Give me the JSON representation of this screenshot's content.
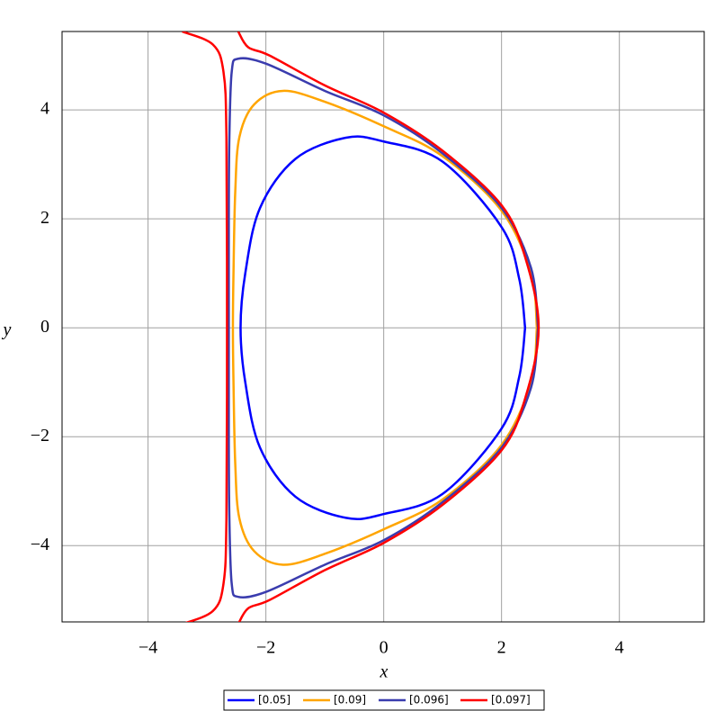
{
  "chart_data": {
    "type": "line",
    "xlabel": "x",
    "ylabel": "y",
    "xlim": [
      -5.46,
      5.44
    ],
    "ylim": [
      -5.4,
      5.44
    ],
    "xticks": [
      {
        "value": -4,
        "label": "−4"
      },
      {
        "value": -2,
        "label": "−2"
      },
      0,
      2,
      4
    ],
    "yticks": [
      {
        "value": -4,
        "label": "−4"
      },
      {
        "value": -2,
        "label": "−2"
      },
      0,
      2,
      4
    ],
    "grid": true,
    "legend": "bottom",
    "series": [
      {
        "name": "[0.05]",
        "color": "#0000ff",
        "x": [
          2.4,
          2.3,
          2.0,
          1.0,
          0,
          -0.64,
          -1.5,
          -2.1,
          -2.35,
          -2.43,
          -2.35,
          -2.1,
          -1.5,
          -0.64,
          0,
          1.0,
          2.0,
          2.3,
          2.4
        ],
        "y": [
          0,
          0.9,
          1.85,
          3.05,
          3.42,
          3.49,
          3.1,
          2.2,
          1.0,
          0,
          -1.0,
          -2.2,
          -3.1,
          -3.49,
          -3.42,
          -3.05,
          -1.85,
          -0.9,
          0
        ]
      },
      {
        "name": "[0.09]",
        "color": "#ffa500",
        "x": [
          2.6,
          2.5,
          2.0,
          1.0,
          0,
          -1.0,
          -1.71,
          -2.2,
          -2.45,
          -2.52,
          -2.55,
          -2.56,
          -2.55,
          -2.52,
          -2.45,
          -2.2,
          -1.71,
          -1.0,
          0,
          1.0,
          2.0,
          2.5,
          2.6
        ],
        "y": [
          0,
          1.0,
          2.15,
          3.15,
          3.7,
          4.15,
          4.35,
          4.1,
          3.5,
          2.5,
          1.0,
          0,
          -1.0,
          -2.5,
          -3.5,
          -4.1,
          -4.35,
          -4.15,
          -3.7,
          -3.15,
          -2.15,
          -1.0,
          0
        ]
      },
      {
        "name": "[0.096]",
        "color": "#3a3cae",
        "x": [
          2.62,
          2.5,
          2.0,
          1.0,
          0,
          -1.0,
          -2.0,
          -2.47,
          -2.58,
          -2.62,
          -2.63,
          -2.63,
          -2.63,
          -2.62,
          -2.58,
          -2.47,
          -2.0,
          -1.0,
          0,
          1.0,
          2.0,
          2.5,
          2.62
        ],
        "y": [
          0,
          1.1,
          2.2,
          3.2,
          3.9,
          4.35,
          4.85,
          4.94,
          4.7,
          3.5,
          2.0,
          0,
          -2.0,
          -3.5,
          -4.7,
          -4.94,
          -4.85,
          -4.35,
          -3.9,
          -3.2,
          -2.2,
          -1.1,
          0
        ]
      },
      {
        "name": "[0.097]",
        "color": "#ff0000",
        "x": [
          -3.42,
          -2.9,
          -2.72,
          -2.67,
          -2.66,
          -2.67,
          -2.72,
          -2.9,
          -3.42,
          null,
          -2.47,
          -2.3,
          -1.94,
          -1.0,
          0,
          1.0,
          2.0,
          2.4,
          2.63,
          2.4,
          2.0,
          1.0,
          0,
          -1.0,
          -1.94,
          -2.3,
          -2.47
        ],
        "y": [
          5.44,
          5.2,
          4.7,
          3.5,
          0,
          -3.5,
          -4.7,
          -5.2,
          -5.44,
          null,
          5.44,
          5.15,
          5.0,
          4.45,
          3.95,
          3.25,
          2.25,
          1.3,
          0,
          -1.3,
          -2.25,
          -3.25,
          -3.95,
          -4.45,
          -5.0,
          -5.15,
          -5.44
        ]
      }
    ]
  }
}
